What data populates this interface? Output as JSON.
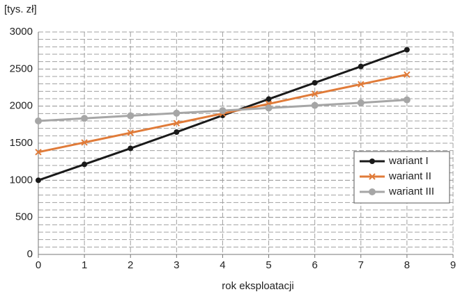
{
  "chart_data": {
    "type": "line",
    "y_unit_label": "[tys. zł]",
    "x_label": "rok eksploatacji",
    "x": [
      0,
      1,
      2,
      3,
      4,
      5,
      6,
      7,
      8
    ],
    "series": [
      {
        "name": "wariant I",
        "color": "#1a1a1a",
        "marker": "circle",
        "values": [
          1000,
          1215,
          1430,
          1650,
          1875,
          2095,
          2315,
          2535,
          2760
        ]
      },
      {
        "name": "wariant II",
        "color": "#e07b39",
        "marker": "x",
        "values": [
          1380,
          1510,
          1640,
          1770,
          1900,
          2030,
          2165,
          2295,
          2425
        ]
      },
      {
        "name": "wariant III",
        "color": "#a6a6a6",
        "marker": "circle",
        "values": [
          1800,
          1835,
          1870,
          1905,
          1940,
          1975,
          2010,
          2045,
          2085
        ]
      }
    ],
    "xlim": [
      0,
      9
    ],
    "xticks": [
      0,
      1,
      2,
      3,
      4,
      5,
      6,
      7,
      8,
      9
    ],
    "ylim": [
      0,
      3000
    ],
    "yticks": [
      0,
      500,
      1000,
      1500,
      2000,
      2500,
      3000
    ],
    "minor_grid_step": 100,
    "grid": true,
    "legend": "right"
  }
}
